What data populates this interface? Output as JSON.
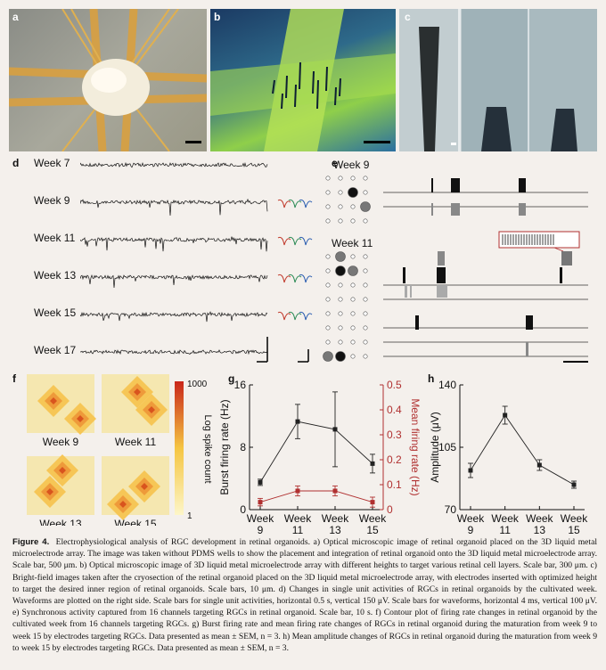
{
  "panels": {
    "a": {
      "label": "a"
    },
    "b": {
      "label": "b"
    },
    "c": {
      "label": "c"
    },
    "d": {
      "label": "d",
      "rows": [
        "Week  7",
        "Week  9",
        "Week 11",
        "Week 13",
        "Week 15",
        "Week 17"
      ]
    },
    "e": {
      "label": "e",
      "groups": [
        "Week  9",
        "Week 11"
      ]
    },
    "f": {
      "label": "f",
      "maps": [
        "Week  9",
        "Week 11",
        "Week 13",
        "Week 15"
      ],
      "colorbar_max": "1000",
      "colorbar_min": "1",
      "colorbar_label": "Log spike count"
    },
    "g": {
      "label": "g"
    },
    "h": {
      "label": "h"
    }
  },
  "chart_data": [
    {
      "type": "line",
      "panel": "g",
      "categories": [
        "Week\n9",
        "Week\n11",
        "Week\n13",
        "Week\n15"
      ],
      "series": [
        {
          "name": "Burst firing rate (Hz)",
          "axis": "left",
          "color": "#222222",
          "values": [
            3.5,
            11.3,
            10.3,
            5.9
          ],
          "err": [
            0.4,
            2.2,
            4.8,
            1.2
          ]
        },
        {
          "name": "Mean firing rate (Hz)",
          "axis": "right",
          "color": "#b03030",
          "values": [
            0.03,
            0.075,
            0.075,
            0.03
          ],
          "err": [
            0.015,
            0.02,
            0.02,
            0.02
          ]
        }
      ],
      "ylabel": "Burst firing rate (Hz)",
      "ylabel_right": "Mean firing rate (Hz)",
      "ylim": [
        0,
        16
      ],
      "ylim_right": [
        0,
        0.5
      ],
      "yticks": [
        "0",
        "8",
        "16"
      ],
      "yticks_right": [
        "0",
        "0.1",
        "0.2",
        "0.3",
        "0.4",
        "0.5"
      ]
    },
    {
      "type": "line",
      "panel": "h",
      "categories": [
        "Week\n9",
        "Week\n11",
        "Week\n13",
        "Week\n15"
      ],
      "series": [
        {
          "name": "Amplitude (μV)",
          "color": "#222222",
          "values": [
            92,
            123,
            95,
            84
          ],
          "err": [
            4,
            5,
            3,
            2
          ]
        }
      ],
      "ylabel": "Amplitude (μV)",
      "ylim": [
        70,
        140
      ],
      "yticks": [
        "70",
        "105",
        "140"
      ]
    }
  ],
  "caption": {
    "head": "Figure 4.",
    "body": "Electrophysiological analysis of RGC development in retinal organoids. a) Optical microscopic image of retinal organoid placed on the 3D liquid metal microelectrode array. The image was taken without PDMS wells to show the placement and integration of retinal organoid onto the 3D liquid metal microelectrode array. Scale bar, 500 μm. b) Optical microscopic image of 3D liquid metal microelectrode array with different heights to target various retinal cell layers. Scale bar, 300 μm. c) Bright-field images taken after the cryosection of the retinal organoid placed on the 3D liquid metal microelectrode array, with electrodes inserted with optimized height to target the desired inner region of retinal organoids. Scale bars, 10 μm. d) Changes in single unit activities of RGCs in retinal organoids by the cultivated week. Waveforms are plotted on the right side. Scale bars for single unit activities, horizontal 0.5 s, vertical 150 μV. Scale bars for waveforms, horizontal 4 ms, vertical 100 μV. e) Synchronous activity captured from 16 channels targeting RGCs in retinal organoid. Scale bar, 10 s. f) Contour plot of firing rate changes in retinal organoid by the cultivated week from 16 channels targeting RGCs. g) Burst firing rate and mean firing rate changes of RGCs in retinal organoid during the maturation from week 9 to week 15 by electrodes targeting RGCs. Data presented as mean ± SEM, n = 3. h) Mean amplitude changes of RGCs in retinal organoid during the maturation from week 9 to week 15 by electrodes targeting RGCs. Data presented as mean ± SEM, n = 3."
  }
}
